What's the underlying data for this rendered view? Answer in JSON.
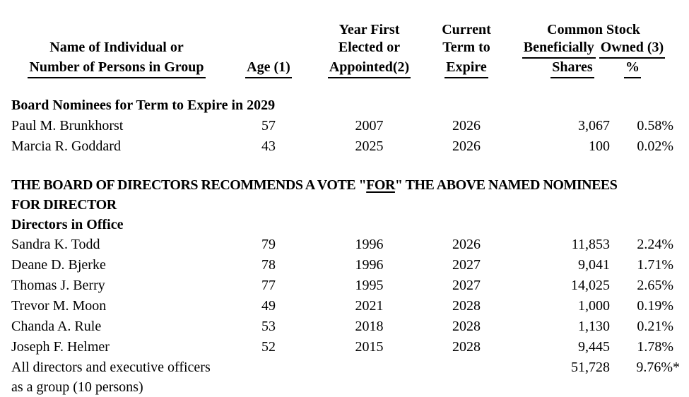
{
  "document": {
    "background": "#ffffff",
    "text_color": "#000000"
  },
  "header": {
    "name_line1": "Name of Individual or",
    "name_line2": "Number of Persons in Group",
    "age": "Age (1)",
    "year_line1": "Year First",
    "year_line2": "Elected or",
    "year_line3": "Appointed(2)",
    "term_line1": "Current",
    "term_line2": "Term to",
    "term_line3": "Expire",
    "stock_line1": "Common Stock",
    "stock_line2_word1": "Beneficially",
    "stock_line2_word2": "Owned (3)",
    "shares": "Shares",
    "percent": "%"
  },
  "sections": [
    {
      "title": "Board Nominees for Term to Expire in 2029",
      "rows": [
        {
          "name": "Paul M. Brunkhorst",
          "age": "57",
          "year": "2007",
          "term": "2026",
          "shares": "3,067",
          "pct": "0.58%"
        },
        {
          "name": "Marcia R. Goddard",
          "age": "43",
          "year": "2025",
          "term": "2026",
          "shares": "100",
          "pct": "0.02%"
        }
      ]
    },
    {
      "title": "Directors in Office",
      "rows": [
        {
          "name": "Sandra K. Todd",
          "age": "79",
          "year": "1996",
          "term": "2026",
          "shares": "11,853",
          "pct": "2.24%"
        },
        {
          "name": "Deane D. Bjerke",
          "age": "78",
          "year": "1996",
          "term": "2027",
          "shares": "9,041",
          "pct": "1.71%"
        },
        {
          "name": "Thomas J. Berry",
          "age": "77",
          "year": "1995",
          "term": "2027",
          "shares": "14,025",
          "pct": "2.65%"
        },
        {
          "name": "Trevor M. Moon",
          "age": "49",
          "year": "2021",
          "term": "2028",
          "shares": "1,000",
          "pct": "0.19%"
        },
        {
          "name": "Chanda A. Rule",
          "age": "53",
          "year": "2018",
          "term": "2028",
          "shares": "1,130",
          "pct": "0.21%"
        },
        {
          "name": "Joseph F. Helmer",
          "age": "52",
          "year": "2015",
          "term": "2028",
          "shares": "9,445",
          "pct": "1.78%"
        }
      ]
    }
  ],
  "recommendation": {
    "line1_before": "THE BOARD OF DIRECTORS RECOMMENDS A VOTE \"",
    "line1_underlined": "FOR",
    "line1_after": "\" THE ABOVE NAMED NOMINEES",
    "line2": "FOR DIRECTOR"
  },
  "totals": {
    "name_line1": "All directors and executive officers",
    "name_line2": "as a group (10 persons)",
    "shares": "51,728",
    "pct": "9.76%*"
  }
}
